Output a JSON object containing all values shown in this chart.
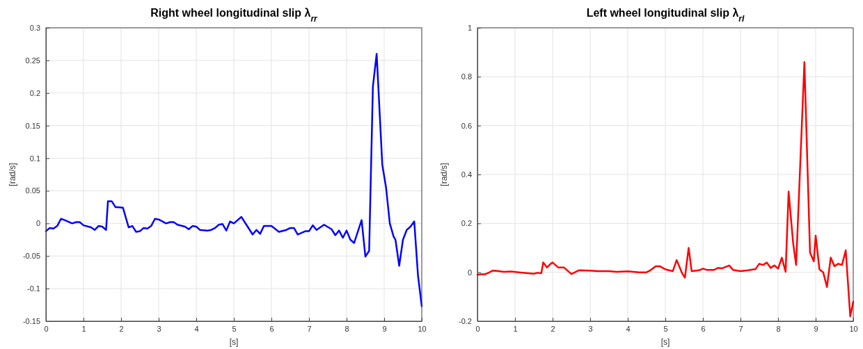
{
  "chart_data": [
    {
      "type": "line",
      "title": "Right wheel longitudinal slip λ$_{rr}$",
      "xlabel": "[s]",
      "ylabel": "[rad/s]",
      "xlim": [
        0,
        10
      ],
      "ylim": [
        -0.15,
        0.3
      ],
      "xticks": [
        0,
        1,
        2,
        3,
        4,
        5,
        6,
        7,
        8,
        9,
        10
      ],
      "yticks": [
        -0.15,
        -0.1,
        -0.05,
        0,
        0.05,
        0.1,
        0.15,
        0.2,
        0.25,
        0.3
      ],
      "grid": true,
      "series": [
        {
          "color": "#0000ff",
          "x": [
            0,
            0.1,
            0.2,
            0.3,
            0.4,
            0.5,
            0.7,
            0.8,
            0.9,
            1.0,
            1.2,
            1.3,
            1.4,
            1.5,
            1.6,
            1.65,
            1.75,
            1.85,
            1.9,
            2.05,
            2.2,
            2.3,
            2.4,
            2.5,
            2.6,
            2.7,
            2.8,
            2.9,
            3.0,
            3.2,
            3.3,
            3.4,
            3.5,
            3.7,
            3.8,
            3.9,
            4.0,
            4.1,
            4.3,
            4.4,
            4.5,
            4.6,
            4.7,
            4.8,
            4.9,
            5.0,
            5.2,
            5.5,
            5.6,
            5.7,
            5.8,
            6.0,
            6.2,
            6.4,
            6.5,
            6.6,
            6.7,
            6.9,
            7.0,
            7.1,
            7.2,
            7.4,
            7.6,
            7.7,
            7.8,
            7.9,
            8.0,
            8.1,
            8.2,
            8.4,
            8.5,
            8.6,
            8.7,
            8.8,
            8.95,
            9.05,
            9.15,
            9.25,
            9.3,
            9.4,
            9.5,
            9.6,
            9.7,
            9.8,
            9.9,
            10
          ],
          "values": [
            -0.012,
            -0.007,
            -0.008,
            -0.004,
            0.007,
            0.005,
            0,
            0.002,
            0.002,
            -0.003,
            -0.006,
            -0.01,
            -0.004,
            -0.005,
            -0.01,
            0.034,
            0.034,
            0.025,
            0.025,
            0.024,
            -0.006,
            -0.004,
            -0.013,
            -0.012,
            -0.007,
            -0.008,
            -0.004,
            0.007,
            0.006,
            0,
            0.002,
            0.002,
            -0.002,
            -0.005,
            -0.009,
            -0.004,
            -0.005,
            -0.01,
            -0.011,
            -0.01,
            -0.007,
            -0.002,
            -0.001,
            -0.011,
            0.003,
            0,
            0.01,
            -0.017,
            -0.01,
            -0.016,
            -0.004,
            -0.004,
            -0.013,
            -0.01,
            -0.007,
            -0.007,
            -0.017,
            -0.012,
            -0.012,
            -0.003,
            -0.01,
            -0.002,
            -0.009,
            -0.018,
            -0.011,
            -0.022,
            -0.011,
            -0.025,
            -0.03,
            0.005,
            -0.051,
            -0.042,
            0.21,
            0.26,
            0.09,
            0.055,
            0,
            -0.02,
            -0.025,
            -0.065,
            -0.025,
            -0.01,
            -0.005,
            0.003,
            -0.08,
            -0.127
          ]
        }
      ]
    },
    {
      "type": "line",
      "title": "Left wheel longitudinal slip λ$_{rl}$",
      "xlabel": "[s]",
      "ylabel": "[rad/s]",
      "xlim": [
        0,
        10
      ],
      "ylim": [
        -0.2,
        1
      ],
      "xticks": [
        0,
        1,
        2,
        3,
        4,
        5,
        6,
        7,
        8,
        9,
        10
      ],
      "yticks": [
        -0.2,
        0,
        0.2,
        0.4,
        0.6,
        0.8,
        1
      ],
      "grid": true,
      "series": [
        {
          "color": "#ff0000",
          "x": [
            0,
            0.1,
            0.2,
            0.3,
            0.4,
            0.5,
            0.7,
            0.9,
            1.1,
            1.3,
            1.5,
            1.6,
            1.7,
            1.75,
            1.85,
            1.95,
            2.0,
            2.15,
            2.3,
            2.5,
            2.7,
            3.0,
            3.2,
            3.5,
            3.7,
            4.0,
            4.3,
            4.5,
            4.6,
            4.75,
            4.85,
            5.0,
            5.2,
            5.3,
            5.45,
            5.52,
            5.62,
            5.7,
            5.9,
            6.0,
            6.1,
            6.3,
            6.4,
            6.5,
            6.7,
            6.8,
            7.0,
            7.2,
            7.4,
            7.5,
            7.6,
            7.7,
            7.8,
            7.9,
            8.0,
            8.1,
            8.2,
            8.28,
            8.4,
            8.48,
            8.7,
            8.85,
            8.95,
            9.0,
            9.1,
            9.2,
            9.3,
            9.4,
            9.5,
            9.6,
            9.7,
            9.8,
            9.92,
            10
          ],
          "values": [
            -0.01,
            -0.008,
            -0.008,
            -0.002,
            0.007,
            0.006,
            0.002,
            0.003,
            0,
            -0.003,
            -0.006,
            -0.002,
            -0.004,
            0.04,
            0.02,
            0.035,
            0.04,
            0.02,
            0.02,
            -0.007,
            0.008,
            0.007,
            0.005,
            0.005,
            0.002,
            0.004,
            0,
            0,
            0.008,
            0.025,
            0.025,
            0.012,
            0.005,
            0.05,
            -0.005,
            -0.022,
            0.1,
            0.005,
            0.008,
            0.015,
            0.01,
            0.01,
            0.018,
            0.016,
            0.028,
            0.01,
            0.005,
            0.008,
            0.013,
            0.035,
            0.03,
            0.04,
            0.018,
            0.028,
            0.015,
            0.06,
            0.002,
            0.33,
            0.12,
            0.03,
            0.86,
            0.08,
            0.045,
            0.15,
            0.012,
            0,
            -0.06,
            0.06,
            0.025,
            0.035,
            0.03,
            0.09,
            -0.18,
            -0.12
          ]
        }
      ]
    }
  ]
}
